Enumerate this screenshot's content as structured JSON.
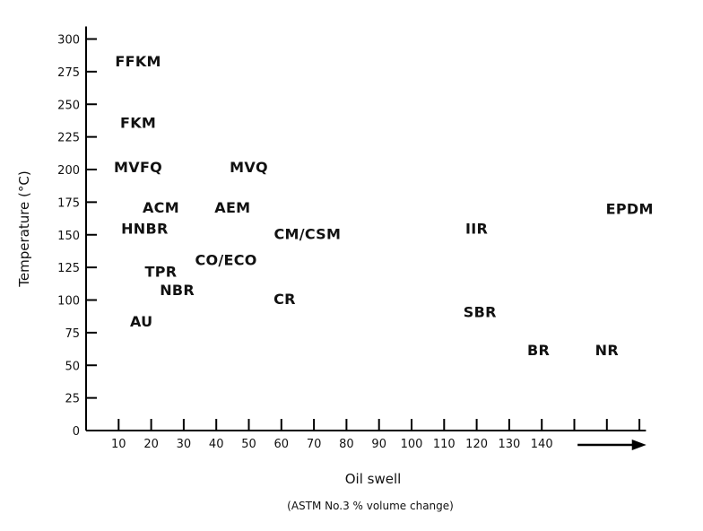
{
  "chart_data": {
    "type": "scatter",
    "ylabel": "Temperature (°C)",
    "xlabel": "Oil swell",
    "xlabel_sub": "(ASTM No.3 % volume change)",
    "xlim": [
      0,
      165
    ],
    "ylim": [
      0,
      300
    ],
    "x_ticks": [
      10,
      20,
      30,
      40,
      50,
      60,
      70,
      80,
      90,
      100,
      110,
      120,
      130,
      140
    ],
    "x_tick_labels": [
      "10",
      "20",
      "30",
      "40",
      "50",
      "60",
      "70",
      "80",
      "90",
      "100",
      "110",
      "120",
      "130",
      "140"
    ],
    "x_extra_tick_marks": [
      150,
      160,
      170
    ],
    "y_ticks": [
      0,
      25,
      50,
      75,
      100,
      125,
      150,
      175,
      200,
      225,
      250,
      275,
      300
    ],
    "y_tick_labels": [
      "0",
      "25",
      "50",
      "75",
      "100",
      "125",
      "150",
      "175",
      "200",
      "225",
      "250",
      "275",
      "300"
    ],
    "arrow": "→ beyond 140",
    "points": [
      {
        "label": "FFKM",
        "x": 16,
        "y": 283
      },
      {
        "label": "FKM",
        "x": 16,
        "y": 236
      },
      {
        "label": "MVFQ",
        "x": 16,
        "y": 202
      },
      {
        "label": "MVQ",
        "x": 50,
        "y": 202
      },
      {
        "label": "ACM",
        "x": 23,
        "y": 171
      },
      {
        "label": "AEM",
        "x": 45,
        "y": 171
      },
      {
        "label": "EPDM",
        "x": 167,
        "y": 170
      },
      {
        "label": "HNBR",
        "x": 18,
        "y": 155
      },
      {
        "label": "IIR",
        "x": 120,
        "y": 155
      },
      {
        "label": "CM/CSM",
        "x": 68,
        "y": 151
      },
      {
        "label": "CO/ECO",
        "x": 43,
        "y": 131
      },
      {
        "label": "TPR",
        "x": 23,
        "y": 122
      },
      {
        "label": "NBR",
        "x": 28,
        "y": 108
      },
      {
        "label": "CR",
        "x": 61,
        "y": 101
      },
      {
        "label": "SBR",
        "x": 121,
        "y": 91
      },
      {
        "label": "AU",
        "x": 17,
        "y": 84
      },
      {
        "label": "BR",
        "x": 139,
        "y": 62
      },
      {
        "label": "NR",
        "x": 160,
        "y": 62
      }
    ]
  }
}
